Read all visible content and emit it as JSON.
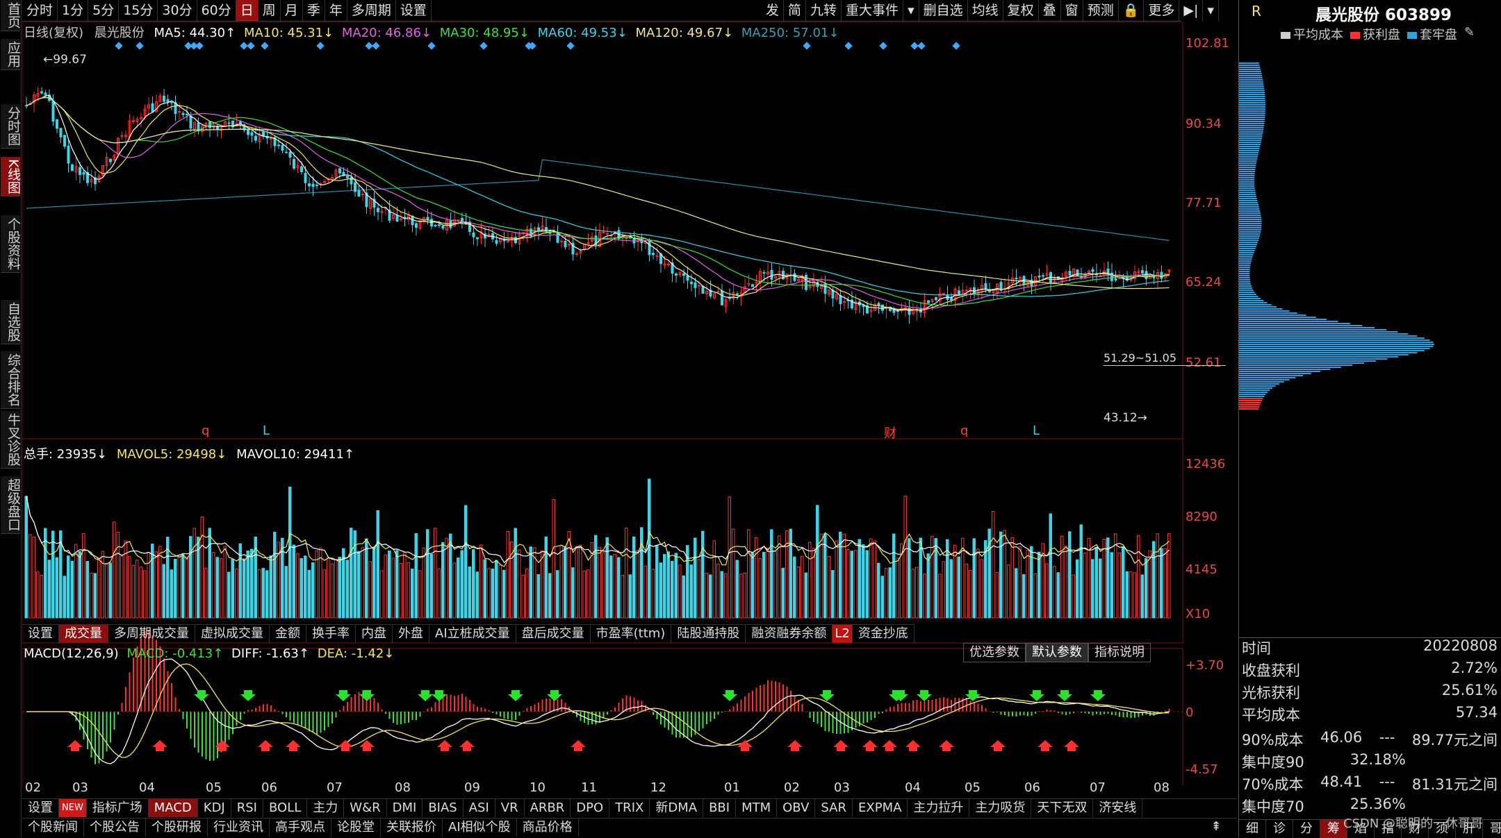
{
  "left_nav": [
    "首页",
    "应用",
    "分时图",
    "K线图",
    "个股资料",
    "自选股",
    "综合排名",
    "牛叉诊股",
    "超级盘口"
  ],
  "top_periods": [
    "分时",
    "1分",
    "5分",
    "15分",
    "30分",
    "60分",
    "日",
    "周",
    "月",
    "季",
    "年",
    "多周期",
    "设置"
  ],
  "top_tools": [
    "发",
    "简",
    "九转",
    "重大事件",
    "▾",
    "删自选",
    "均线",
    "复权",
    "叠",
    "窗",
    "预测",
    "🔒",
    "更多",
    "▶|",
    "▾"
  ],
  "header": {
    "title": "日线(复权)",
    "stock": "晨光股份",
    "ma5": "MA5: 44.30↑",
    "ma10": "MA10: 45.31↓",
    "ma20": "MA20: 46.86↓",
    "ma30": "MA30: 48.95↓",
    "ma60": "MA60: 49.53↓",
    "ma120": "MA120: 49.67↓",
    "ma250": "MA250: 57.01↓"
  },
  "price_axis": [
    "102.81",
    "90.34",
    "77.71",
    "65.24",
    "52.61"
  ],
  "annotations": {
    "high": "99.67",
    "low": "43.12",
    "range": "51.29~51.05",
    "marks": [
      "q",
      "L",
      "财",
      "q",
      "L"
    ]
  },
  "volume": {
    "total": "总手: 23935↓",
    "mavol5": "MAVOL5: 29498↓",
    "mavol10": "MAVOL10: 29411↑",
    "axis": [
      "12436",
      "8290",
      "4145",
      "X10"
    ]
  },
  "indicator_tabs": [
    "设置",
    "成交量",
    "多周期成交量",
    "虚拟成交量",
    "金额",
    "换手率",
    "内盘",
    "外盘",
    "AI立桩成交量",
    "盘后成交量",
    "市盈率(ttm)",
    "陆股通持股",
    "融资融券余额",
    "L2",
    "资金抄底"
  ],
  "macd": {
    "title": "MACD(12,26,9)",
    "macd": "MACD: -0.413↑",
    "diff": "DIFF: -1.63↑",
    "dea": "DEA: -1.42↓",
    "axis": [
      "+3.70",
      "0",
      "-4.57"
    ],
    "buttons": [
      "优选参数",
      "默认参数",
      "指标说明"
    ]
  },
  "months": [
    "02",
    "03",
    "04",
    "05",
    "06",
    "07",
    "08",
    "09",
    "10",
    "11",
    "12",
    "01",
    "02",
    "03",
    "04",
    "05",
    "06",
    "07",
    "08"
  ],
  "indicator_bar": [
    "设置",
    "NEW",
    "指标广场",
    "MACD",
    "KDJ",
    "RSI",
    "BOLL",
    "主力",
    "W&R",
    "DMI",
    "BIAS",
    "ASI",
    "VR",
    "ARBR",
    "DPO",
    "TRIX",
    "新DMA",
    "BBI",
    "MTM",
    "OBV",
    "SAR",
    "EXPMA",
    "主力拉升",
    "主力吸货",
    "天下无双",
    "济安线"
  ],
  "news_bar": [
    "个股新闻",
    "个股公告",
    "个股研报",
    "行业资讯",
    "高手观点",
    "论股堂",
    "关联报价",
    "AI相似个股",
    "商品价格"
  ],
  "right_panel": {
    "tag": "R",
    "title": "晨光股份 603899",
    "legend": [
      "平均成本",
      "获利盘",
      "套牢盘"
    ],
    "rows": [
      {
        "k": "时间",
        "v": "20220808"
      },
      {
        "k": "收盘获利",
        "v": "2.72%"
      },
      {
        "k": "光标获利",
        "v": "25.61%"
      },
      {
        "k": "平均成本",
        "v": "57.34"
      }
    ],
    "cost_rows": [
      {
        "a": "90%成本",
        "b": "46.06",
        "c": "---",
        "d": "89.77元之间"
      },
      {
        "a": "集中度90",
        "b": "32.18%",
        "c": "",
        "d": ""
      },
      {
        "a": "70%成本",
        "b": "48.41",
        "c": "---",
        "d": "81.31元之间"
      },
      {
        "a": "集中度70",
        "b": "25.36%",
        "c": "",
        "d": ""
      }
    ],
    "bottom_tabs": [
      "细",
      "诊",
      "分",
      "筹",
      "焰",
      "指",
      "财",
      "须",
      "肝",
      "哥"
    ],
    "watermark": "CSDN @聪明的一休哥哥"
  }
}
